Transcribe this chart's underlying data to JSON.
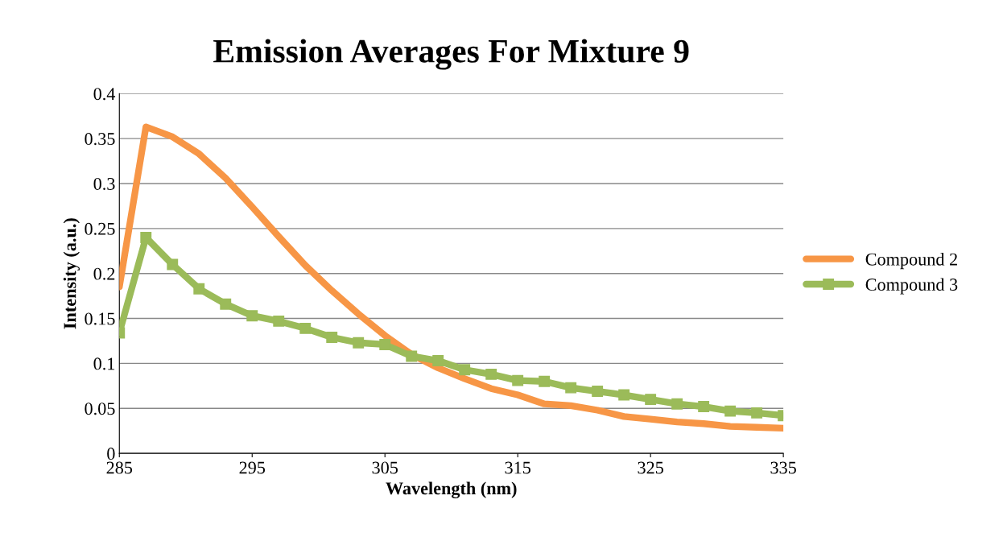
{
  "chart_data": {
    "type": "line",
    "title": "Emission Averages For Mixture 9",
    "xlabel": "Wavelength (nm)",
    "ylabel": "Intensity (a.u.)",
    "x": [
      285,
      287,
      289,
      291,
      293,
      295,
      297,
      299,
      301,
      303,
      305,
      307,
      309,
      311,
      313,
      315,
      317,
      319,
      321,
      323,
      325,
      327,
      329,
      331,
      333,
      335
    ],
    "series": [
      {
        "name": "Compound 2",
        "color": "#f79646",
        "marker": "none",
        "values": [
          0.185,
          0.363,
          0.352,
          0.333,
          0.306,
          0.274,
          0.241,
          0.209,
          0.181,
          0.155,
          0.131,
          0.11,
          0.095,
          0.083,
          0.072,
          0.065,
          0.055,
          0.053,
          0.048,
          0.041,
          0.038,
          0.035,
          0.033,
          0.03,
          0.029,
          0.028
        ]
      },
      {
        "name": "Compound 3",
        "color": "#9bbb59",
        "marker": "square",
        "values": [
          0.134,
          0.24,
          0.21,
          0.183,
          0.166,
          0.153,
          0.147,
          0.139,
          0.129,
          0.123,
          0.121,
          0.108,
          0.103,
          0.093,
          0.088,
          0.081,
          0.08,
          0.073,
          0.069,
          0.065,
          0.06,
          0.055,
          0.052,
          0.047,
          0.045,
          0.042
        ]
      }
    ],
    "xlim": [
      285,
      335
    ],
    "xticks": [
      285,
      295,
      305,
      315,
      325,
      335
    ],
    "ylim": [
      0,
      0.4
    ],
    "yticks": [
      0,
      0.05,
      0.1,
      0.15,
      0.2,
      0.25,
      0.3,
      0.35,
      0.4
    ],
    "grid": "y",
    "legend": "right",
    "line_style": "solid"
  }
}
